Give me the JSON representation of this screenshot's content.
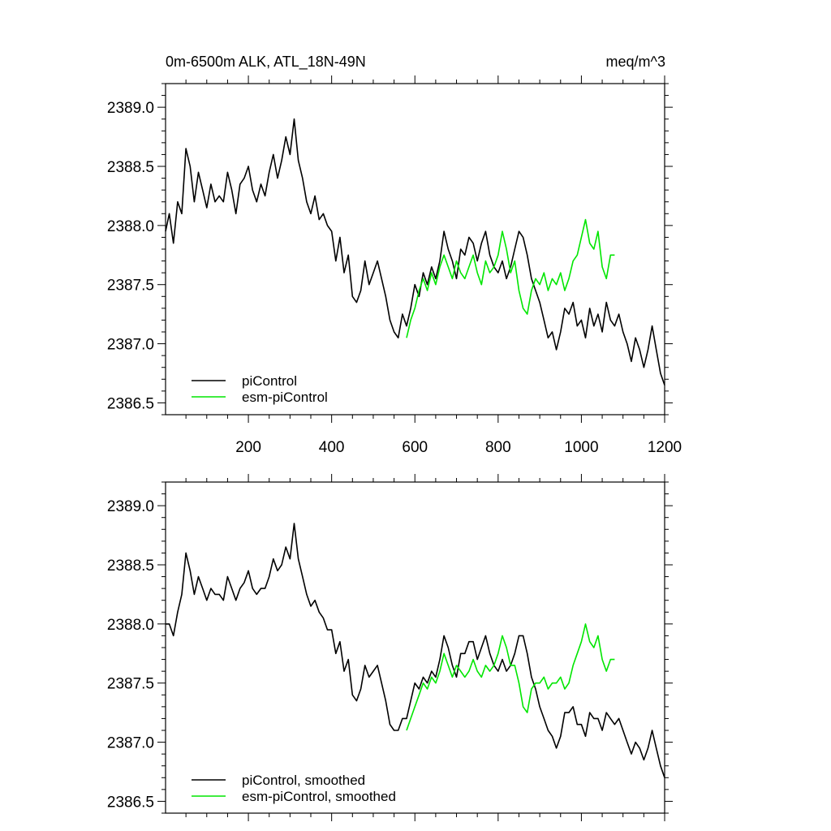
{
  "chart_data": [
    {
      "type": "line",
      "title": "0m-6500m ALK, ATL_18N-49N",
      "units": "meq/m^3",
      "xlim": [
        1,
        1200
      ],
      "ylim": [
        2386.4,
        2389.2
      ],
      "xticks": [
        200,
        400,
        600,
        800,
        1000,
        1200
      ],
      "xticklabels": [
        "200",
        "400",
        "600",
        "800",
        "1000",
        "1200"
      ],
      "yticks": [
        2386.5,
        2387.0,
        2387.5,
        2388.0,
        2388.5,
        2389.0
      ],
      "yticklabels": [
        "2386.5",
        "2387.0",
        "2387.5",
        "2388.0",
        "2388.5",
        "2389.0"
      ],
      "legend_position": "bottom-left",
      "grid": false,
      "series": [
        {
          "name": "piControl",
          "color": "#000000",
          "x": [
            1,
            10,
            20,
            30,
            40,
            50,
            60,
            70,
            80,
            90,
            100,
            110,
            120,
            130,
            140,
            150,
            160,
            170,
            180,
            190,
            200,
            210,
            220,
            230,
            240,
            250,
            260,
            270,
            280,
            290,
            300,
            310,
            320,
            330,
            340,
            350,
            360,
            370,
            380,
            390,
            400,
            410,
            420,
            430,
            440,
            450,
            460,
            470,
            480,
            490,
            500,
            510,
            520,
            530,
            540,
            550,
            560,
            570,
            580,
            590,
            600,
            610,
            620,
            630,
            640,
            650,
            660,
            670,
            680,
            690,
            700,
            710,
            720,
            730,
            740,
            750,
            760,
            770,
            780,
            790,
            800,
            810,
            820,
            830,
            840,
            850,
            860,
            870,
            880,
            890,
            900,
            910,
            920,
            930,
            940,
            950,
            960,
            970,
            980,
            990,
            1000,
            1010,
            1020,
            1030,
            1040,
            1050,
            1060,
            1070,
            1080,
            1090,
            1100,
            1110,
            1120,
            1130,
            1140,
            1150,
            1160,
            1170,
            1180,
            1190,
            1200
          ],
          "y": [
            2387.95,
            2388.1,
            2387.85,
            2388.2,
            2388.1,
            2388.65,
            2388.5,
            2388.2,
            2388.45,
            2388.3,
            2388.15,
            2388.35,
            2388.2,
            2388.25,
            2388.2,
            2388.45,
            2388.3,
            2388.1,
            2388.35,
            2388.4,
            2388.5,
            2388.3,
            2388.2,
            2388.35,
            2388.25,
            2388.45,
            2388.6,
            2388.4,
            2388.55,
            2388.75,
            2388.6,
            2388.9,
            2388.55,
            2388.4,
            2388.2,
            2388.1,
            2388.25,
            2388.05,
            2388.1,
            2388.0,
            2387.95,
            2387.7,
            2387.9,
            2387.6,
            2387.75,
            2387.4,
            2387.35,
            2387.45,
            2387.7,
            2387.5,
            2387.6,
            2387.7,
            2387.55,
            2387.4,
            2387.2,
            2387.1,
            2387.05,
            2387.25,
            2387.15,
            2387.3,
            2387.5,
            2387.4,
            2387.6,
            2387.5,
            2387.65,
            2387.55,
            2387.7,
            2387.95,
            2387.8,
            2387.7,
            2387.55,
            2387.8,
            2387.75,
            2387.9,
            2387.85,
            2387.7,
            2387.85,
            2387.95,
            2387.75,
            2387.65,
            2387.6,
            2387.7,
            2387.55,
            2387.65,
            2387.8,
            2387.95,
            2387.9,
            2387.75,
            2387.55,
            2387.45,
            2387.35,
            2387.2,
            2387.05,
            2387.1,
            2386.95,
            2387.1,
            2387.3,
            2387.25,
            2387.35,
            2387.15,
            2387.2,
            2387.05,
            2387.3,
            2387.15,
            2387.25,
            2387.1,
            2387.35,
            2387.2,
            2387.15,
            2387.25,
            2387.1,
            2387.0,
            2386.85,
            2387.05,
            2386.95,
            2386.8,
            2386.95,
            2387.15,
            2386.95,
            2386.75,
            2386.65
          ]
        },
        {
          "name": "esm-piControl",
          "color": "#00e600",
          "x": [
            580,
            590,
            600,
            610,
            620,
            630,
            640,
            650,
            660,
            670,
            680,
            690,
            700,
            710,
            720,
            730,
            740,
            750,
            760,
            770,
            780,
            790,
            800,
            810,
            820,
            830,
            840,
            850,
            860,
            870,
            880,
            890,
            900,
            910,
            920,
            930,
            940,
            950,
            960,
            970,
            980,
            990,
            1000,
            1010,
            1020,
            1030,
            1040,
            1050,
            1060,
            1070,
            1080
          ],
          "y": [
            2387.05,
            2387.2,
            2387.3,
            2387.45,
            2387.55,
            2387.45,
            2387.6,
            2387.5,
            2387.65,
            2387.75,
            2387.65,
            2387.55,
            2387.7,
            2387.6,
            2387.55,
            2387.65,
            2387.75,
            2387.6,
            2387.5,
            2387.7,
            2387.6,
            2387.65,
            2387.75,
            2387.95,
            2387.8,
            2387.6,
            2387.7,
            2387.45,
            2387.3,
            2387.25,
            2387.45,
            2387.55,
            2387.5,
            2387.6,
            2387.45,
            2387.55,
            2387.5,
            2387.6,
            2387.45,
            2387.55,
            2387.7,
            2387.75,
            2387.9,
            2388.05,
            2387.85,
            2387.8,
            2387.95,
            2387.65,
            2387.55,
            2387.75,
            2387.75
          ]
        }
      ]
    },
    {
      "type": "line",
      "xlim": [
        1,
        1200
      ],
      "ylim": [
        2386.4,
        2389.2
      ],
      "xticks": [
        200,
        400,
        600,
        800,
        1000,
        1200
      ],
      "yticks": [
        2386.5,
        2387.0,
        2387.5,
        2388.0,
        2388.5,
        2389.0
      ],
      "yticklabels": [
        "2386.5",
        "2387.0",
        "2387.5",
        "2388.0",
        "2388.5",
        "2389.0"
      ],
      "legend_position": "bottom-left",
      "grid": false,
      "series": [
        {
          "name": "piControl, smoothed",
          "color": "#000000",
          "x": [
            1,
            10,
            20,
            30,
            40,
            50,
            60,
            70,
            80,
            90,
            100,
            110,
            120,
            130,
            140,
            150,
            160,
            170,
            180,
            190,
            200,
            210,
            220,
            230,
            240,
            250,
            260,
            270,
            280,
            290,
            300,
            310,
            320,
            330,
            340,
            350,
            360,
            370,
            380,
            390,
            400,
            410,
            420,
            430,
            440,
            450,
            460,
            470,
            480,
            490,
            500,
            510,
            520,
            530,
            540,
            550,
            560,
            570,
            580,
            590,
            600,
            610,
            620,
            630,
            640,
            650,
            660,
            670,
            680,
            690,
            700,
            710,
            720,
            730,
            740,
            750,
            760,
            770,
            780,
            790,
            800,
            810,
            820,
            830,
            840,
            850,
            860,
            870,
            880,
            890,
            900,
            910,
            920,
            930,
            940,
            950,
            960,
            970,
            980,
            990,
            1000,
            1010,
            1020,
            1030,
            1040,
            1050,
            1060,
            1070,
            1080,
            1090,
            1100,
            1110,
            1120,
            1130,
            1140,
            1150,
            1160,
            1170,
            1180,
            1190,
            1200
          ],
          "y": [
            2388.0,
            2388.0,
            2387.9,
            2388.1,
            2388.25,
            2388.6,
            2388.45,
            2388.25,
            2388.4,
            2388.3,
            2388.2,
            2388.3,
            2388.25,
            2388.25,
            2388.2,
            2388.4,
            2388.3,
            2388.2,
            2388.3,
            2388.35,
            2388.45,
            2388.3,
            2388.25,
            2388.3,
            2388.3,
            2388.4,
            2388.55,
            2388.45,
            2388.5,
            2388.65,
            2388.55,
            2388.85,
            2388.55,
            2388.4,
            2388.25,
            2388.15,
            2388.2,
            2388.1,
            2388.05,
            2387.95,
            2387.95,
            2387.75,
            2387.85,
            2387.6,
            2387.7,
            2387.4,
            2387.35,
            2387.45,
            2387.65,
            2387.55,
            2387.6,
            2387.65,
            2387.5,
            2387.35,
            2387.15,
            2387.1,
            2387.1,
            2387.2,
            2387.2,
            2387.35,
            2387.5,
            2387.45,
            2387.55,
            2387.5,
            2387.6,
            2387.55,
            2387.7,
            2387.9,
            2387.8,
            2387.65,
            2387.55,
            2387.75,
            2387.75,
            2387.85,
            2387.85,
            2387.7,
            2387.8,
            2387.9,
            2387.75,
            2387.65,
            2387.6,
            2387.7,
            2387.6,
            2387.65,
            2387.75,
            2387.9,
            2387.9,
            2387.75,
            2387.55,
            2387.45,
            2387.3,
            2387.2,
            2387.1,
            2387.05,
            2386.95,
            2387.05,
            2387.25,
            2387.25,
            2387.3,
            2387.15,
            2387.15,
            2387.05,
            2387.25,
            2387.2,
            2387.2,
            2387.1,
            2387.25,
            2387.2,
            2387.15,
            2387.2,
            2387.1,
            2387.0,
            2386.9,
            2387.0,
            2386.95,
            2386.85,
            2386.95,
            2387.1,
            2386.95,
            2386.8,
            2386.7
          ]
        },
        {
          "name": "esm-piControl, smoothed",
          "color": "#00e600",
          "x": [
            580,
            590,
            600,
            610,
            620,
            630,
            640,
            650,
            660,
            670,
            680,
            690,
            700,
            710,
            720,
            730,
            740,
            750,
            760,
            770,
            780,
            790,
            800,
            810,
            820,
            830,
            840,
            850,
            860,
            870,
            880,
            890,
            900,
            910,
            920,
            930,
            940,
            950,
            960,
            970,
            980,
            990,
            1000,
            1010,
            1020,
            1030,
            1040,
            1050,
            1060,
            1070,
            1080
          ],
          "y": [
            2387.1,
            2387.2,
            2387.3,
            2387.4,
            2387.5,
            2387.45,
            2387.55,
            2387.5,
            2387.6,
            2387.75,
            2387.65,
            2387.55,
            2387.65,
            2387.6,
            2387.55,
            2387.6,
            2387.7,
            2387.6,
            2387.55,
            2387.65,
            2387.6,
            2387.65,
            2387.75,
            2387.9,
            2387.8,
            2387.65,
            2387.65,
            2387.5,
            2387.3,
            2387.25,
            2387.45,
            2387.5,
            2387.5,
            2387.55,
            2387.45,
            2387.5,
            2387.5,
            2387.55,
            2387.45,
            2387.5,
            2387.65,
            2387.75,
            2387.85,
            2388.0,
            2387.85,
            2387.8,
            2387.9,
            2387.7,
            2387.6,
            2387.7,
            2387.7
          ]
        }
      ]
    }
  ]
}
